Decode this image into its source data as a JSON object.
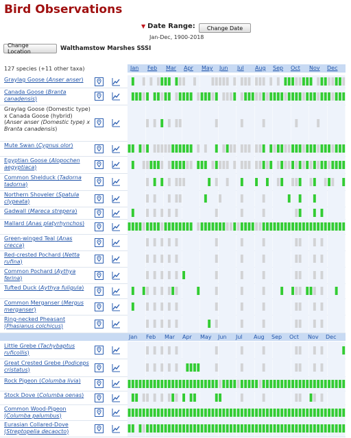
{
  "header": {
    "title": "Bird Observations",
    "date_range_label": "Date Range:",
    "date_range_value": "Jan-Dec, 1900-2018",
    "change_date_label": "Change Date",
    "change_location_label": "Change Location",
    "location_name": "Walthamstow Marshes SSSI",
    "species_count": "127 species (+11 other taxa)"
  },
  "months": [
    "Jan",
    "Feb",
    "Mar",
    "Apr",
    "May",
    "Jun",
    "Jul",
    "Aug",
    "Sep",
    "Oct",
    "Nov",
    "Dec"
  ],
  "colors": {
    "present": "#33cc33",
    "sampled": "#c8c8c8",
    "band": "#c8daf3",
    "title": "#a01010",
    "link": "#2255aa"
  },
  "legend_note": "cell codes: 2 = observed (green), 1 = checklist without record (grey), 0 = none",
  "species": [
    {
      "common": "Graylag Goose",
      "sci": "Anser anser",
      "link": true,
      "weeks": "020010101222021100100001111101011101110101022211222012211221"
    },
    {
      "common": "Canada Goose",
      "sci": "Branta canadensis",
      "link": true,
      "weeks": "022212022122012222012221201112012221121222212222122212221222"
    },
    {
      "common": "Graylag Goose (Domestic type) x Canada Goose (hybrid)",
      "sci": "Anser anser (Domestic type) x Branta canadensis",
      "link": false,
      "weeks": "000001010201011000000000100000010000010000000010000010000000"
    },
    {
      "common": "Mute Swan",
      "sci": "Cygnus olor",
      "link": true,
      "weeks": "220212011111222222010100201211011101120212211222122212221222"
    },
    {
      "common": "Egyptian Goose",
      "sci": "Alopochen aegyptiaca",
      "link": true,
      "weeks": "020011222101222211022201211101011101121201211212121212212222"
    },
    {
      "common": "Common Shelduck",
      "sci": "Tadorna tadorna",
      "link": true,
      "weeks": "000001020201011100000020100100020002002001200112001200121002"
    },
    {
      "common": "Northern Shoveler",
      "sci": "Spatula clypeata",
      "link": true,
      "weeks": "000001010001011000000200010000010000010000002002000200000000"
    },
    {
      "common": "Gadwall",
      "sci": "Mareca strepera",
      "link": true,
      "weeks": "020001010101010000000000100000010000010000000012000202000000"
    },
    {
      "common": "Mallard",
      "sci": "Anas platyrhynchos",
      "link": true,
      "weeks": "222212222122222222012222222112122221122222222222222222222222"
    },
    {
      "common": "Green-winged Teal",
      "sci": "Anas crecca",
      "link": true,
      "weeks": "000001010101010000000000100000010000010000000011000101000000"
    },
    {
      "common": "Red-crested Pochard",
      "sci": "Netta rufina",
      "link": true,
      "weeks": "000001010101010000000000100000010000010000000011000101000000"
    },
    {
      "common": "Common Pochard",
      "sci": "Aythya ferina",
      "link": true,
      "weeks": "000001010101010200000000100000010000010000000011000101000000"
    },
    {
      "common": "Tufted Duck",
      "sci": "Aythya fuligula",
      "link": true,
      "weeks": "020021010101210000020000100000010000010000200211022101000200"
    },
    {
      "common": "Common Merganser",
      "sci": "Mergus merganser",
      "link": true,
      "weeks": "020001010101010000000000100000010000010000000011000101000000"
    },
    {
      "common": "Ring-necked Pheasant",
      "sci": "Phasianus colchicus",
      "link": true,
      "weeks": "000001010101010000000020100000010000010000000011000101000000"
    },
    {
      "common": "Little Grebe",
      "sci": "Tachybaptus ruficollis",
      "link": true,
      "weeks": "000001010101010000000000100000010000010000000011000101000002"
    },
    {
      "common": "Great Crested Grebe",
      "sci": "Podiceps cristatus",
      "link": true,
      "weeks": "000001010101010022220000100000010000010000000011000101000000"
    },
    {
      "common": "Rock Pigeon",
      "sci": "Columba livia",
      "link": true,
      "weeks": "222222222222222222222222212222122222122222222222222222222222"
    },
    {
      "common": "Stock Dove",
      "sci": "Columba oenas",
      "link": true,
      "weeks": "022011010101210202200000220000010000010000000011002101000000"
    },
    {
      "common": "Common Wood-Pigeon",
      "sci": "Columba palumbus",
      "link": true,
      "weeks": "222222222222222222222222222222222222222222222222222222222222"
    },
    {
      "common": "Eurasian Collared-Dove",
      "sci": "Streptopelia decaocto",
      "link": true,
      "weeks": "220212222222222222222222222222222222222222222222222222222222"
    }
  ]
}
